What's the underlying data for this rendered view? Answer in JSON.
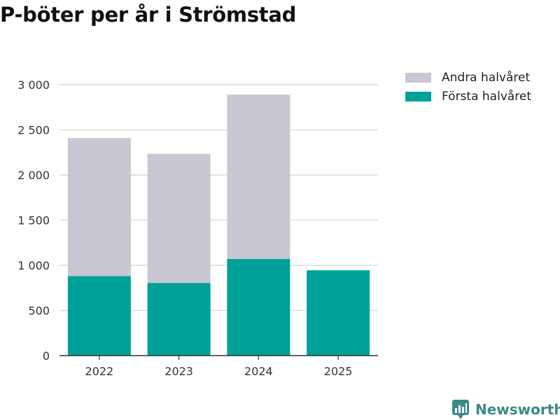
{
  "chart_data": {
    "type": "bar",
    "stacked": true,
    "title": "P-böter per år i Strömstad",
    "xlabel": "",
    "ylabel": "",
    "categories": [
      "2022",
      "2023",
      "2024",
      "2025"
    ],
    "series": [
      {
        "name": "Första halvåret",
        "color": "#00a199",
        "values": [
          880,
          805,
          1070,
          945
        ]
      },
      {
        "name": "Andra halvåret",
        "color": "#c8c8d2",
        "values": [
          1530,
          1430,
          1820,
          0
        ]
      }
    ],
    "ylim": [
      0,
      3000
    ],
    "yticks": [
      0,
      500,
      1000,
      1500,
      2000,
      2500,
      3000
    ],
    "ytick_labels": [
      "0",
      "500",
      "1 000",
      "1 500",
      "2 000",
      "2 500",
      "3 000"
    ],
    "grid": true,
    "legend_position": "top-right"
  },
  "legend": {
    "items": [
      {
        "label": "Andra halvåret",
        "color": "#c8c8d2"
      },
      {
        "label": "Första halvåret",
        "color": "#00a199"
      }
    ]
  },
  "branding": {
    "label": "Newsworthy",
    "color": "#3d8a85",
    "icon": "newsworthy-logo-icon"
  }
}
